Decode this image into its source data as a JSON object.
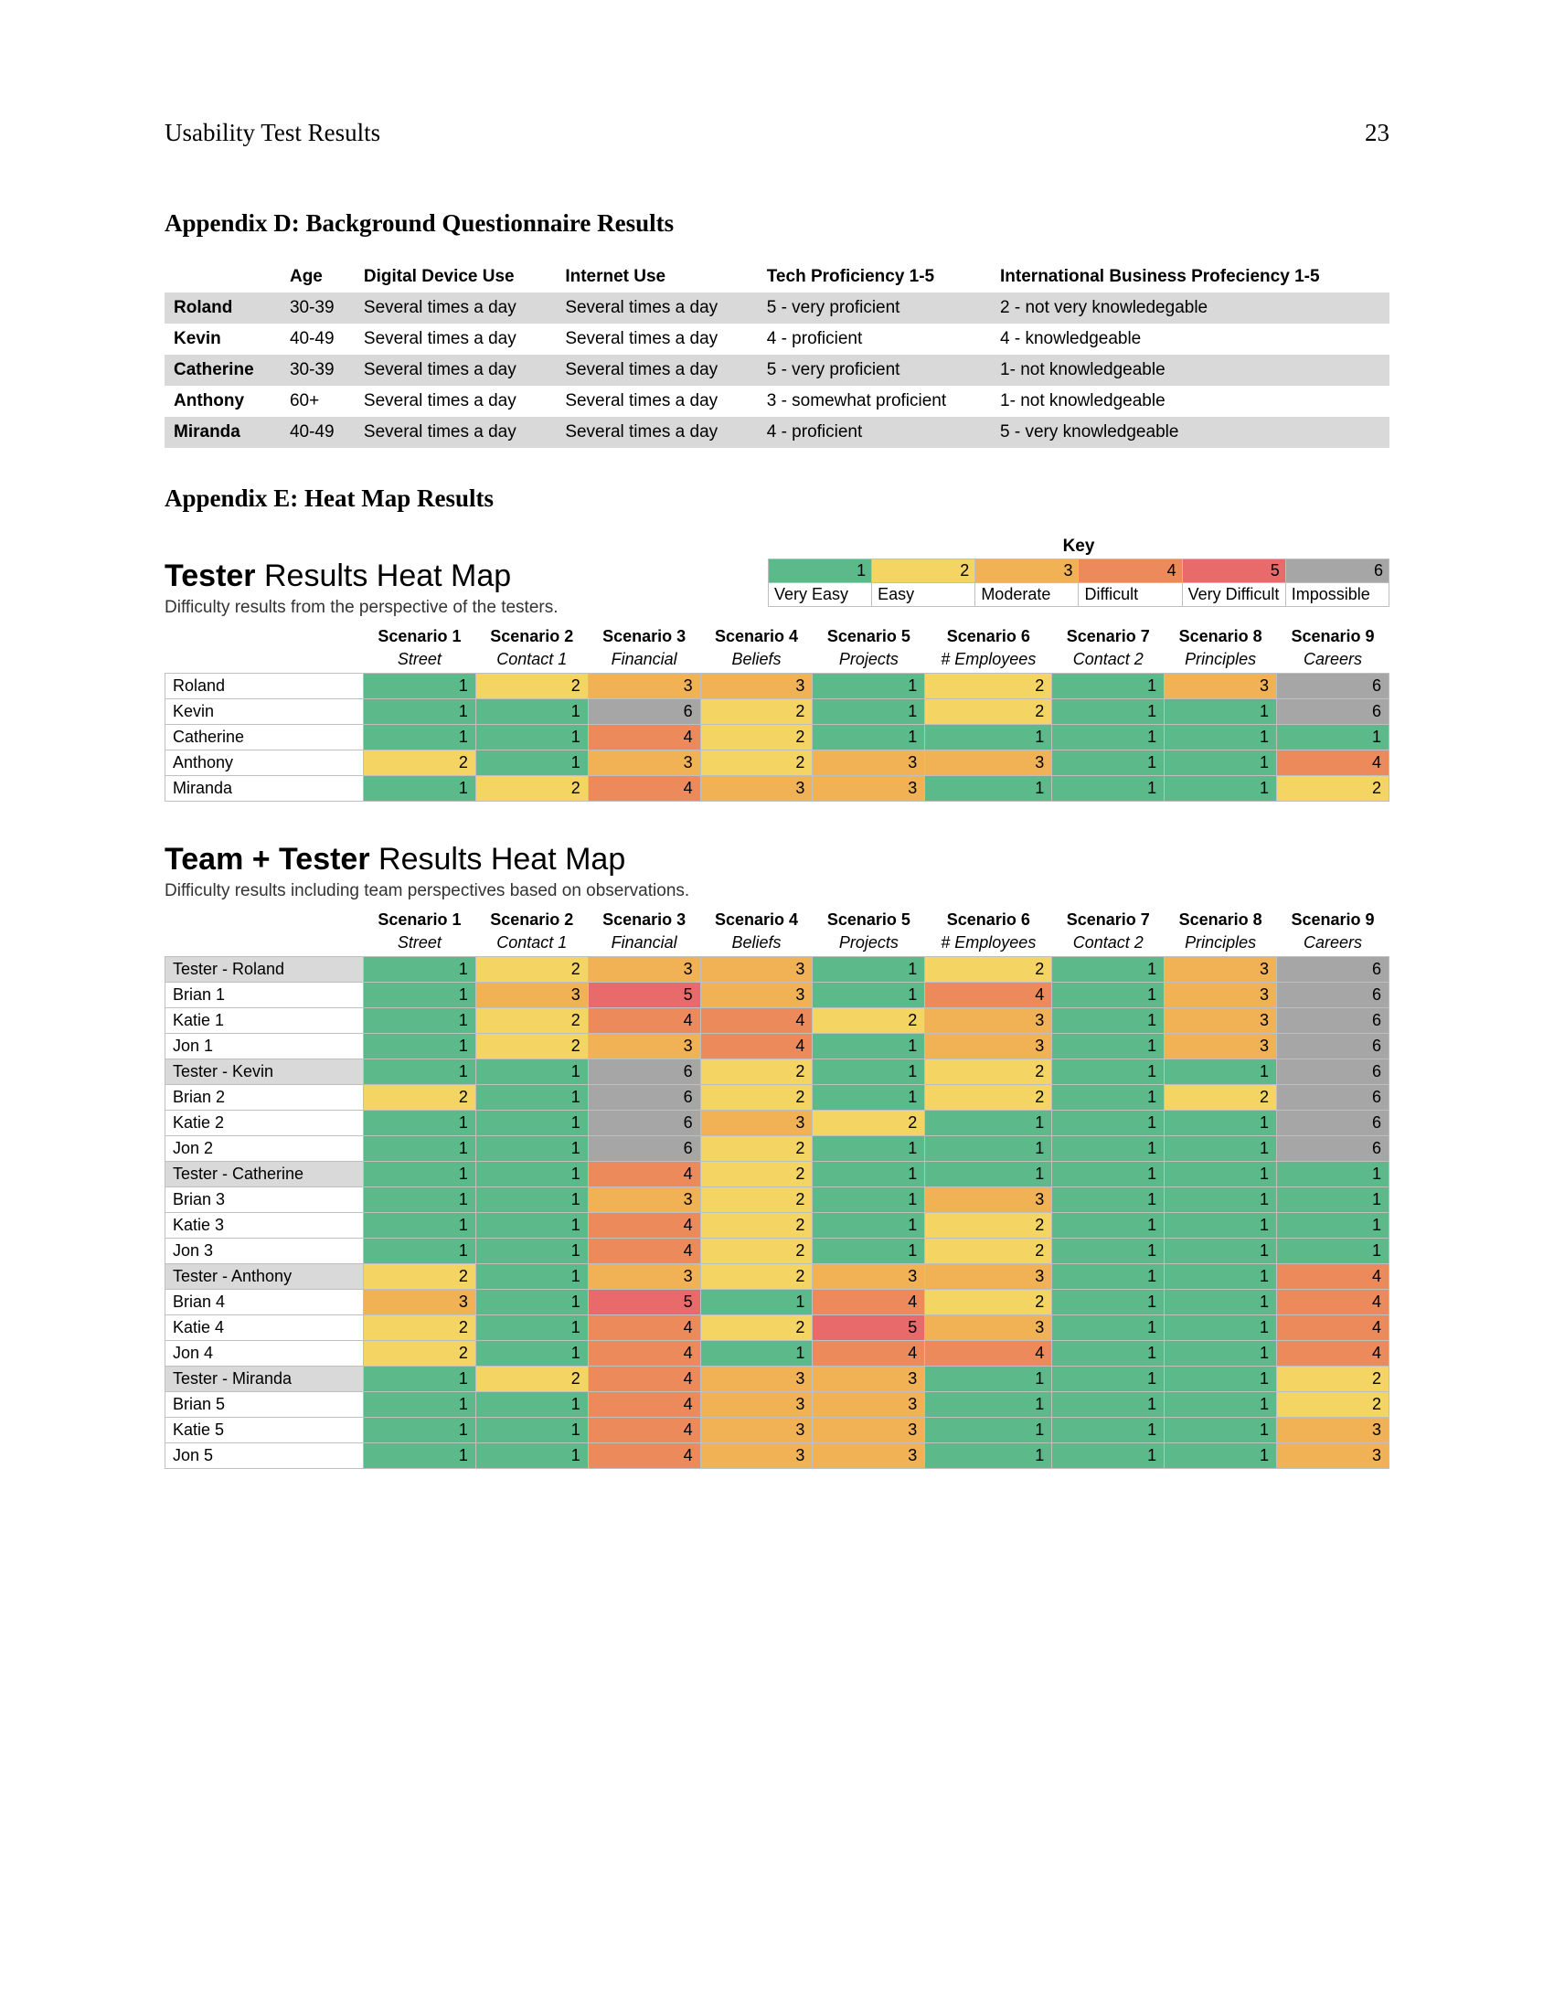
{
  "header": {
    "doc_title": "Usability Test Results",
    "page_number": "23"
  },
  "appendix_d": {
    "title": "Appendix D: Background Questionnaire Results",
    "columns": [
      "",
      "Age",
      "Digital Device Use",
      "Internet Use",
      "Tech Proficiency 1-5",
      "International Business Profeciency 1-5"
    ],
    "rows": [
      [
        "Roland",
        "30-39",
        "Several times a day",
        "Several times a day",
        "5 - very proficient",
        "2 - not very knowledegable"
      ],
      [
        "Kevin",
        "40-49",
        "Several times a day",
        "Several times a day",
        "4 - proficient",
        "4 - knowledgeable"
      ],
      [
        "Catherine",
        "30-39",
        "Several times a day",
        "Several times a day",
        "5 - very proficient",
        "1- not knowledgeable"
      ],
      [
        "Anthony",
        "60+",
        "Several times a day",
        "Several times a day",
        "3 - somewhat proficient",
        "1- not knowledgeable"
      ],
      [
        "Miranda",
        "40-49",
        "Several times a day",
        "Several times a day",
        "4 - proficient",
        "5 - very knowledgeable"
      ]
    ],
    "zebra_indices": [
      0,
      2,
      4
    ]
  },
  "appendix_e": {
    "title": "Appendix E: Heat Map Results"
  },
  "heat_colors": {
    "1": "#5cb98a",
    "2": "#f4d563",
    "3": "#f1b155",
    "4": "#ec8a5c",
    "5": "#e86a6a",
    "6": "#a6a6a6"
  },
  "key": {
    "label": "Key",
    "values": [
      "1",
      "2",
      "3",
      "4",
      "5",
      "6"
    ],
    "labels": [
      "Very Easy",
      "Easy",
      "Moderate",
      "Difficult",
      "Very Difficult",
      "Impossible"
    ]
  },
  "scenario_headers": [
    "Scenario 1",
    "Scenario 2",
    "Scenario 3",
    "Scenario 4",
    "Scenario 5",
    "Scenario 6",
    "Scenario 7",
    "Scenario 8",
    "Scenario 9"
  ],
  "scenario_subs": [
    "Street",
    "Contact 1",
    "Financial",
    "Beliefs",
    "Projects",
    "# Employees",
    "Contact 2",
    "Principles",
    "Careers"
  ],
  "tester_heatmap": {
    "title_bold": "Tester",
    "title_rest": " Results Heat Map",
    "subtitle": "Difficulty results from the perspective of the testers.",
    "rows": [
      {
        "name": "Roland",
        "vals": [
          1,
          2,
          3,
          3,
          1,
          2,
          1,
          3,
          6
        ]
      },
      {
        "name": "Kevin",
        "vals": [
          1,
          1,
          6,
          2,
          1,
          2,
          1,
          1,
          6
        ]
      },
      {
        "name": "Catherine",
        "vals": [
          1,
          1,
          4,
          2,
          1,
          1,
          1,
          1,
          1
        ]
      },
      {
        "name": "Anthony",
        "vals": [
          2,
          1,
          3,
          2,
          3,
          3,
          1,
          1,
          4
        ]
      },
      {
        "name": "Miranda",
        "vals": [
          1,
          2,
          4,
          3,
          3,
          1,
          1,
          1,
          2
        ]
      }
    ]
  },
  "team_heatmap": {
    "title_bold": "Team + Tester",
    "title_rest": " Results Heat Map",
    "subtitle": "Difficulty results including team perspectives based on observations.",
    "rows": [
      {
        "name": "Tester - Roland",
        "shaded": true,
        "vals": [
          1,
          2,
          3,
          3,
          1,
          2,
          1,
          3,
          6
        ]
      },
      {
        "name": "Brian 1",
        "shaded": false,
        "vals": [
          1,
          3,
          5,
          3,
          1,
          4,
          1,
          3,
          6
        ]
      },
      {
        "name": "Katie 1",
        "shaded": false,
        "vals": [
          1,
          2,
          4,
          4,
          2,
          3,
          1,
          3,
          6
        ]
      },
      {
        "name": "Jon 1",
        "shaded": false,
        "vals": [
          1,
          2,
          3,
          4,
          1,
          3,
          1,
          3,
          6
        ]
      },
      {
        "name": "Tester - Kevin",
        "shaded": true,
        "vals": [
          1,
          1,
          6,
          2,
          1,
          2,
          1,
          1,
          6
        ]
      },
      {
        "name": "Brian 2",
        "shaded": false,
        "vals": [
          2,
          1,
          6,
          2,
          1,
          2,
          1,
          2,
          6
        ]
      },
      {
        "name": "Katie 2",
        "shaded": false,
        "vals": [
          1,
          1,
          6,
          3,
          2,
          1,
          1,
          1,
          6
        ]
      },
      {
        "name": "Jon 2",
        "shaded": false,
        "vals": [
          1,
          1,
          6,
          2,
          1,
          1,
          1,
          1,
          6
        ]
      },
      {
        "name": "Tester - Catherine",
        "shaded": true,
        "vals": [
          1,
          1,
          4,
          2,
          1,
          1,
          1,
          1,
          1
        ]
      },
      {
        "name": "Brian 3",
        "shaded": false,
        "vals": [
          1,
          1,
          3,
          2,
          1,
          3,
          1,
          1,
          1
        ]
      },
      {
        "name": "Katie 3",
        "shaded": false,
        "vals": [
          1,
          1,
          4,
          2,
          1,
          2,
          1,
          1,
          1
        ]
      },
      {
        "name": "Jon 3",
        "shaded": false,
        "vals": [
          1,
          1,
          4,
          2,
          1,
          2,
          1,
          1,
          1
        ]
      },
      {
        "name": "Tester - Anthony",
        "shaded": true,
        "vals": [
          2,
          1,
          3,
          2,
          3,
          3,
          1,
          1,
          4
        ]
      },
      {
        "name": "Brian 4",
        "shaded": false,
        "vals": [
          3,
          1,
          5,
          1,
          4,
          2,
          1,
          1,
          4
        ]
      },
      {
        "name": "Katie 4",
        "shaded": false,
        "vals": [
          2,
          1,
          4,
          2,
          5,
          3,
          1,
          1,
          4
        ]
      },
      {
        "name": "Jon 4",
        "shaded": false,
        "vals": [
          2,
          1,
          4,
          1,
          4,
          4,
          1,
          1,
          4
        ]
      },
      {
        "name": "Tester - Miranda",
        "shaded": true,
        "vals": [
          1,
          2,
          4,
          3,
          3,
          1,
          1,
          1,
          2
        ]
      },
      {
        "name": "Brian 5",
        "shaded": false,
        "vals": [
          1,
          1,
          4,
          3,
          3,
          1,
          1,
          1,
          2
        ]
      },
      {
        "name": "Katie 5",
        "shaded": false,
        "vals": [
          1,
          1,
          4,
          3,
          3,
          1,
          1,
          1,
          3
        ]
      },
      {
        "name": "Jon 5",
        "shaded": false,
        "vals": [
          1,
          1,
          4,
          3,
          3,
          1,
          1,
          1,
          3
        ]
      }
    ]
  }
}
